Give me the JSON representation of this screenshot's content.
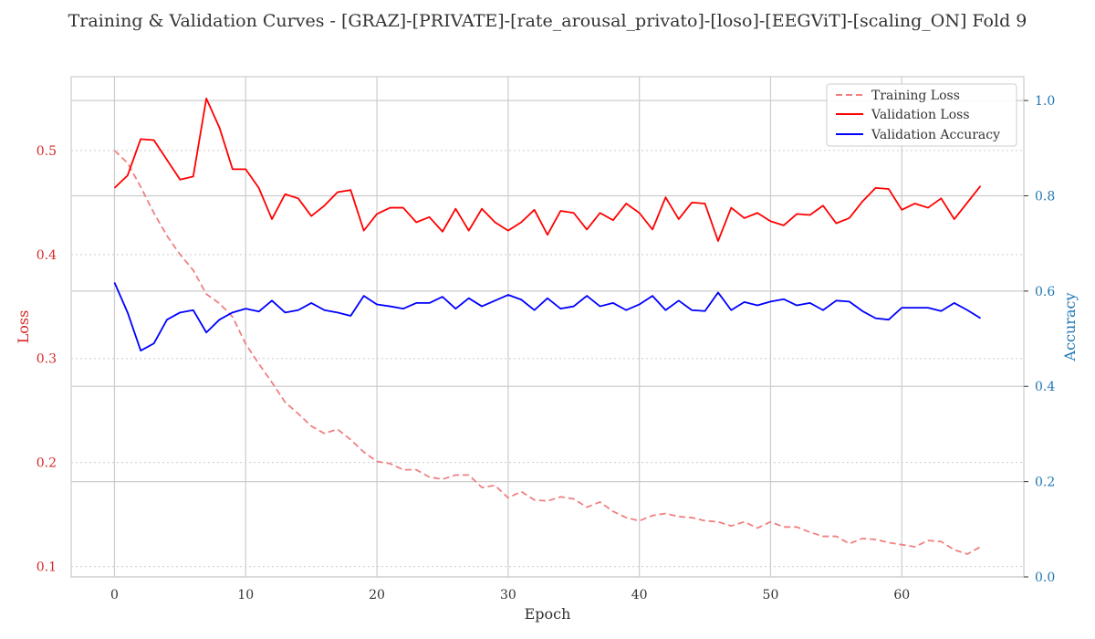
{
  "chart_data": {
    "type": "line",
    "title": "Training & Validation Curves - [GRAZ]-[PRIVATE]-[rate_arousal_privato]-[loso]-[EEGViT]-[scaling_ON] Fold 9",
    "xlabel": "Epoch",
    "ylabel_left": "Loss",
    "ylabel_right": "Accuracy",
    "xlim": [
      -3.3,
      69.3
    ],
    "ylim_left": [
      0.09,
      0.571
    ],
    "ylim_right": [
      0.0,
      1.05
    ],
    "x_ticks": [
      0,
      10,
      20,
      30,
      40,
      50,
      60
    ],
    "y_ticks_left": [
      0.1,
      0.2,
      0.3,
      0.4,
      0.5
    ],
    "y_ticks_right": [
      0.0,
      0.2,
      0.4,
      0.6,
      0.8,
      1.0
    ],
    "x_tick_labels": [
      "0",
      "10",
      "20",
      "30",
      "40",
      "50",
      "60"
    ],
    "y_tick_labels_left": [
      "0.1",
      "0.2",
      "0.3",
      "0.4",
      "0.5"
    ],
    "y_tick_labels_right": [
      "0.0",
      "0.2",
      "0.4",
      "0.6",
      "0.8",
      "1.0"
    ],
    "grid": true,
    "legend_position": "top-right",
    "x": [
      0,
      1,
      2,
      3,
      4,
      5,
      6,
      7,
      8,
      9,
      10,
      11,
      12,
      13,
      14,
      15,
      16,
      17,
      18,
      19,
      20,
      21,
      22,
      23,
      24,
      25,
      26,
      27,
      28,
      29,
      30,
      31,
      32,
      33,
      34,
      35,
      36,
      37,
      38,
      39,
      40,
      41,
      42,
      43,
      44,
      45,
      46,
      47,
      48,
      49,
      50,
      51,
      52,
      53,
      54,
      55,
      56,
      57,
      58,
      59,
      60,
      61,
      62,
      63,
      64,
      65,
      66
    ],
    "series": [
      {
        "name": "Training Loss",
        "axis": "left",
        "color": "#f08080",
        "style": "dashed",
        "values": [
          0.5,
          0.488,
          0.465,
          0.44,
          0.418,
          0.4,
          0.385,
          0.362,
          0.353,
          0.34,
          0.314,
          0.295,
          0.277,
          0.258,
          0.247,
          0.235,
          0.228,
          0.232,
          0.222,
          0.21,
          0.201,
          0.199,
          0.193,
          0.193,
          0.186,
          0.184,
          0.188,
          0.188,
          0.176,
          0.178,
          0.166,
          0.172,
          0.164,
          0.163,
          0.167,
          0.165,
          0.157,
          0.162,
          0.153,
          0.147,
          0.144,
          0.149,
          0.151,
          0.148,
          0.147,
          0.144,
          0.143,
          0.139,
          0.143,
          0.137,
          0.143,
          0.138,
          0.138,
          0.133,
          0.129,
          0.129,
          0.122,
          0.127,
          0.126,
          0.123,
          0.121,
          0.119,
          0.125,
          0.124,
          0.116,
          0.112,
          0.119
        ]
      },
      {
        "name": "Validation Loss",
        "axis": "left",
        "color": "#ff0000",
        "style": "solid",
        "values": [
          0.464,
          0.476,
          0.511,
          0.51,
          0.491,
          0.472,
          0.475,
          0.55,
          0.522,
          0.482,
          0.482,
          0.464,
          0.434,
          0.458,
          0.454,
          0.437,
          0.447,
          0.46,
          0.462,
          0.423,
          0.439,
          0.445,
          0.445,
          0.431,
          0.436,
          0.422,
          0.444,
          0.423,
          0.444,
          0.431,
          0.423,
          0.431,
          0.443,
          0.419,
          0.442,
          0.44,
          0.424,
          0.44,
          0.433,
          0.449,
          0.44,
          0.424,
          0.455,
          0.434,
          0.45,
          0.449,
          0.413,
          0.445,
          0.435,
          0.44,
          0.432,
          0.428,
          0.439,
          0.438,
          0.447,
          0.43,
          0.435,
          0.451,
          0.464,
          0.463,
          0.443,
          0.449,
          0.445,
          0.454,
          0.434,
          0.45,
          0.466
        ]
      },
      {
        "name": "Validation Accuracy",
        "axis": "right",
        "color": "#0000ff",
        "style": "solid",
        "values": [
          0.618,
          0.555,
          0.475,
          0.49,
          0.54,
          0.555,
          0.56,
          0.513,
          0.54,
          0.555,
          0.563,
          0.557,
          0.58,
          0.555,
          0.56,
          0.575,
          0.56,
          0.555,
          0.548,
          0.59,
          0.572,
          0.568,
          0.563,
          0.575,
          0.575,
          0.588,
          0.563,
          0.585,
          0.568,
          0.58,
          0.592,
          0.582,
          0.56,
          0.585,
          0.563,
          0.568,
          0.59,
          0.568,
          0.575,
          0.56,
          0.572,
          0.59,
          0.56,
          0.58,
          0.56,
          0.558,
          0.597,
          0.56,
          0.577,
          0.57,
          0.578,
          0.583,
          0.57,
          0.575,
          0.56,
          0.58,
          0.578,
          0.558,
          0.543,
          0.54,
          0.565,
          0.565,
          0.565,
          0.558,
          0.575,
          0.56,
          0.543
        ]
      }
    ]
  }
}
